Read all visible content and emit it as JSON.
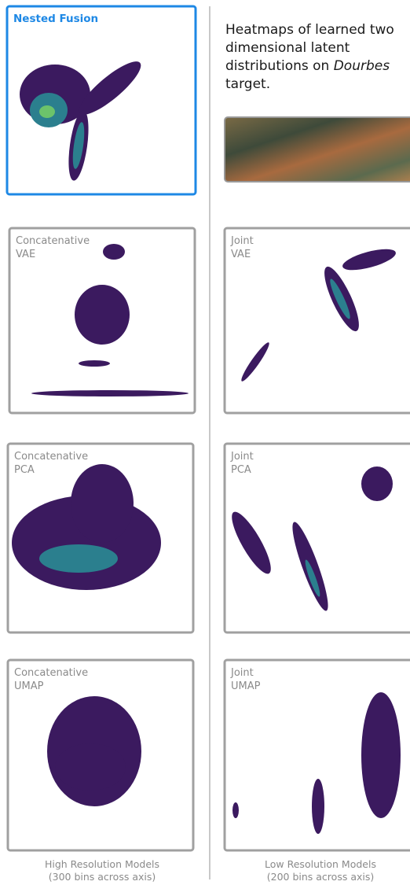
{
  "nested_fusion": {
    "title": "Nested Fusion"
  },
  "caption": [
    "Heatmaps of learned two",
    "dimensional latent",
    "distributions on ",
    "Dourbes",
    "target."
  ],
  "panels": [
    {
      "lines": [
        "Concatenative",
        "VAE"
      ]
    },
    {
      "lines": [
        "Joint",
        "VAE"
      ]
    },
    {
      "lines": [
        "Concatenative",
        "PCA"
      ]
    },
    {
      "lines": [
        "Joint",
        "PCA"
      ]
    },
    {
      "lines": [
        "Concatenative",
        "UMAP"
      ]
    },
    {
      "lines": [
        "Joint",
        "UMAP"
      ]
    }
  ],
  "footers": [
    {
      "lines": [
        "High Resolution Models",
        "(300 bins across axis)"
      ]
    },
    {
      "lines": [
        "Low Resolution Models",
        "(200 bins across axis)"
      ]
    }
  ]
}
